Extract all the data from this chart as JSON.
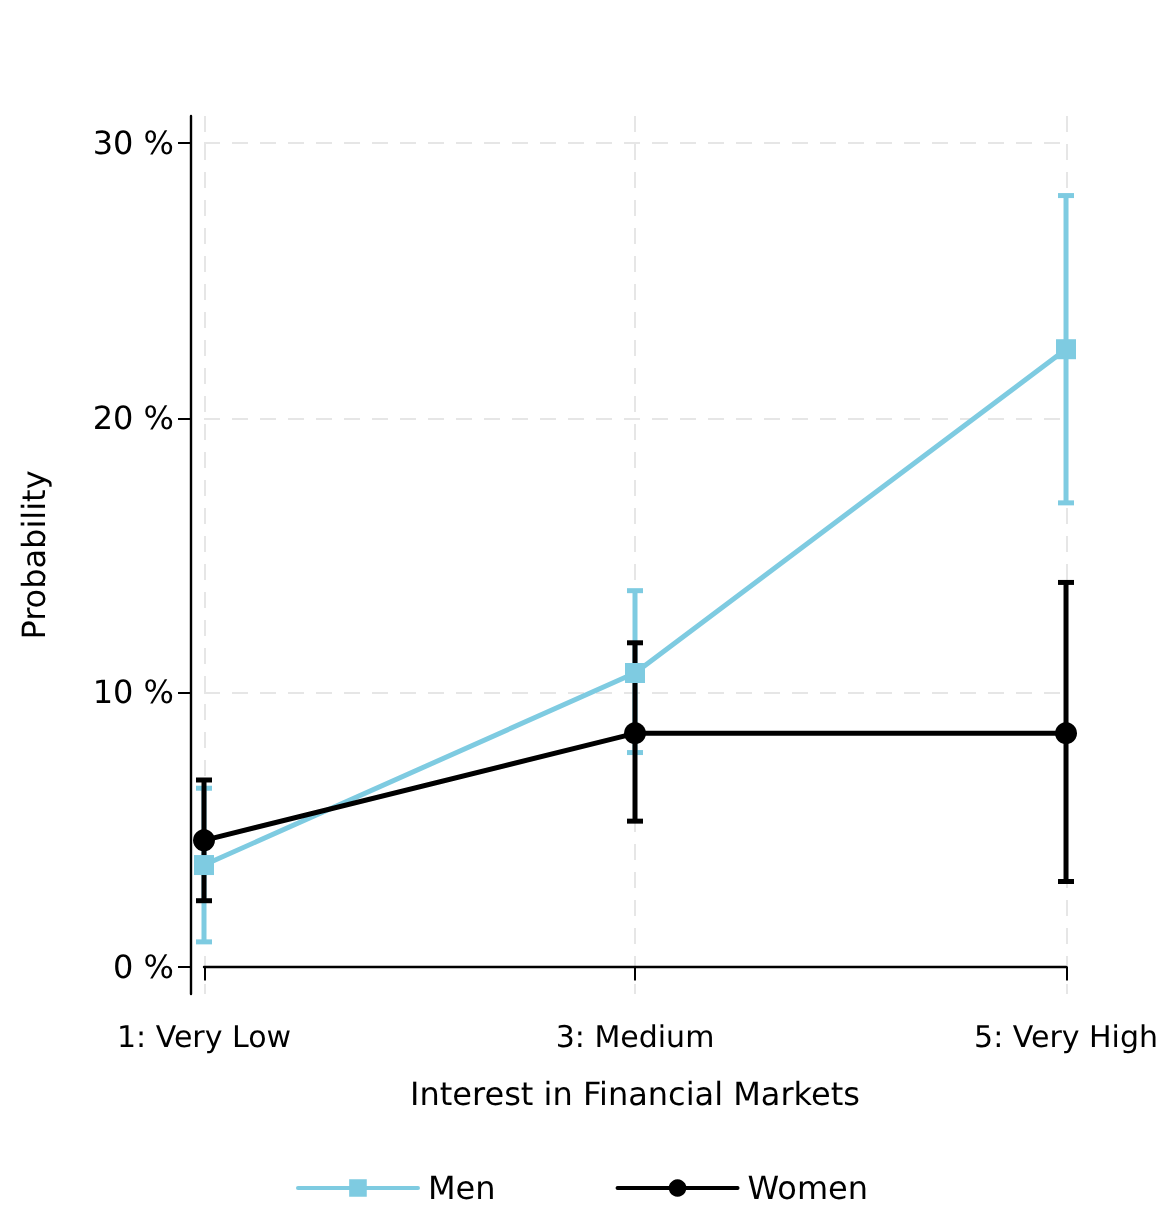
{
  "chart_data": {
    "type": "line",
    "xlabel": "Interest in Financial Markets",
    "ylabel": "Probability",
    "categories": [
      "1: Very Low",
      "3: Medium",
      "5: Very High"
    ],
    "series": [
      {
        "name": "Men",
        "color": "#7ecbe1",
        "marker": "square",
        "values": [
          3.7,
          10.7,
          22.5
        ],
        "errors": [
          [
            0.9,
            6.5
          ],
          [
            7.8,
            13.7
          ],
          [
            16.9,
            28.1
          ]
        ]
      },
      {
        "name": "Women",
        "color": "#000000",
        "marker": "circle",
        "values": [
          4.6,
          8.5,
          8.5
        ],
        "errors": [
          [
            2.4,
            6.8
          ],
          [
            5.3,
            11.8
          ],
          [
            3.1,
            14.0
          ]
        ]
      }
    ],
    "ylim": [
      -1,
      31
    ],
    "yticks": [
      {
        "value": 0,
        "label": "0 %"
      },
      {
        "value": 10,
        "label": "10 %"
      },
      {
        "value": 20,
        "label": "20 %"
      },
      {
        "value": 30,
        "label": "30 %"
      }
    ],
    "grid": true,
    "legend": "bottom",
    "line_style": "solid"
  }
}
